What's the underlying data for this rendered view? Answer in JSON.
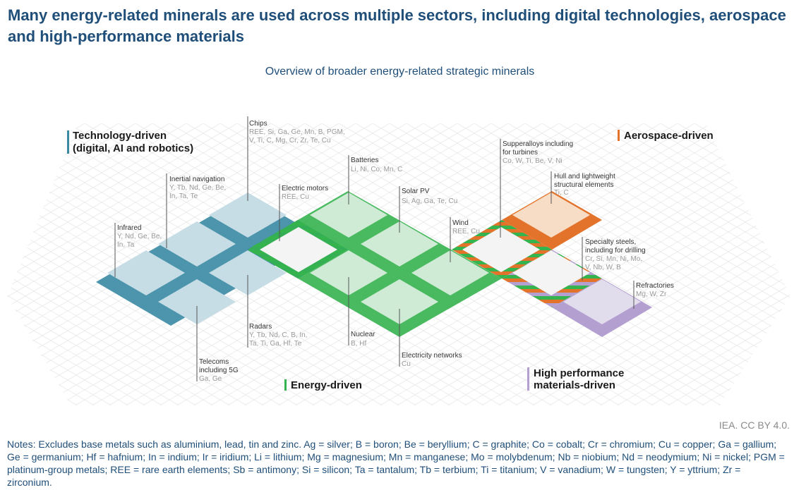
{
  "title": "Many energy-related minerals are used across multiple sectors, including digital technologies, aerospace and high-performance materials",
  "subtitle": "Overview of broader energy-related strategic minerals",
  "source": "IEA. CC BY 4.0.",
  "notes": "Notes: Excludes base metals such as aluminium, lead, tin and zinc. Ag = silver; B = boron; Be = beryllium; C = graphite; Co = cobalt; Cr = chromium; Cu = copper; Ga = gallium; Ge = germanium; Hf = hafnium; In = indium; Ir = iridium; Li = lithium; Mg = magnesium; Mn = manganese; Mo = molybdenum; Nb = niobium; Nd = neodymium; Ni = nickel; PGM = platinum-group metals; REE = rare earth elements; Sb = antimony; Si = silicon; Ta = tantalum; Tb = terbium; Ti = titanium; V = vanadium; W = tungsten; Y = yttrium; Zr = zirconium.",
  "colors": {
    "technology": "#3a8aa3",
    "energy": "#35b34e",
    "aerospace": "#e3732a",
    "materials": "#b39fd0"
  },
  "groups": {
    "technology": {
      "lines": [
        "Technology-driven",
        "(digital, AI and robotics)"
      ]
    },
    "aerospace": {
      "lines": [
        "Aerospace-driven"
      ]
    },
    "energy": {
      "lines": [
        "Energy-driven"
      ]
    },
    "materials": {
      "lines": [
        "High performance",
        "materials-driven"
      ]
    }
  },
  "labels": {
    "chips": {
      "title": [
        "Chips"
      ],
      "minerals": [
        "REE, Si, Ga, Ge, Mn, B, PGM,",
        "V, Ti, C, Mg, Cr, Zr, Te, Cu"
      ]
    },
    "inertial": {
      "title": [
        "Inertial navigation"
      ],
      "minerals": [
        "Y, Tb, Nd, Ge, Be,",
        "In, Ta, Te"
      ]
    },
    "infrared": {
      "title": [
        "Infrared"
      ],
      "minerals": [
        "Y, Nd, Ge, Be,",
        "In, Ta"
      ]
    },
    "radars": {
      "title": [
        "Radars"
      ],
      "minerals": [
        "Y, Tb, Nd, C, B, In,",
        "Ta, Ti, Ga, Hf, Te"
      ]
    },
    "telecoms": {
      "title": [
        "Telecoms",
        "including 5G"
      ],
      "minerals": [
        "Ga, Ge"
      ]
    },
    "motors": {
      "title": [
        "Electric motors"
      ],
      "minerals": [
        "REE, Cu"
      ]
    },
    "batteries": {
      "title": [
        "Batteries"
      ],
      "minerals": [
        "Li, Ni, Co, Mn, C"
      ]
    },
    "solar": {
      "title": [
        "Solar PV"
      ],
      "minerals": [
        "Si, Ag, Ga, Te, Cu"
      ]
    },
    "wind": {
      "title": [
        "Wind"
      ],
      "minerals": [
        "REE, Cu"
      ]
    },
    "nuclear": {
      "title": [
        "Nuclear"
      ],
      "minerals": [
        "B, Hf"
      ]
    },
    "networks": {
      "title": [
        "Electricity networks"
      ],
      "minerals": [
        "Cu"
      ]
    },
    "superalloys": {
      "title": [
        "Supperalloys including",
        "for turbines"
      ],
      "minerals": [
        "Co, W, Ti, Be, V, Ni"
      ]
    },
    "hull": {
      "title": [
        "Hull and lightweight",
        "structural elements"
      ],
      "minerals": [
        "Ti, C"
      ]
    },
    "steels": {
      "title": [
        "Specialty steels,",
        "including for drilling"
      ],
      "minerals": [
        "Cr, Si, Mn, Ni, Mo,",
        "V, Nb, W, B"
      ]
    },
    "refractories": {
      "title": [
        "Refractories"
      ],
      "minerals": [
        "Mg, W, Zr"
      ]
    }
  }
}
